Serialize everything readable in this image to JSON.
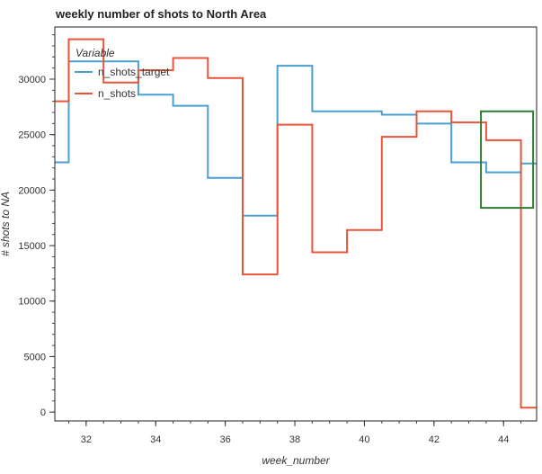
{
  "chart_data": {
    "type": "line",
    "step": true,
    "title": "weekly number of shots to North Area",
    "xlabel": "week_number",
    "ylabel": "# shots to NA",
    "xlim": [
      31.1,
      44.95
    ],
    "ylim": [
      -800,
      34700
    ],
    "xticks": [
      32,
      34,
      36,
      38,
      40,
      42,
      44
    ],
    "yticks": [
      0,
      5000,
      10000,
      15000,
      20000,
      25000,
      30000
    ],
    "legend": {
      "title": "Variable",
      "position": "top-left"
    },
    "series": [
      {
        "name": "n_shots_target",
        "color": "#4a9fd4",
        "x": [
          31,
          32,
          33,
          34,
          35,
          36,
          37,
          38,
          39,
          40,
          41,
          42,
          43,
          44,
          45
        ],
        "y": [
          22500,
          31600,
          31600,
          28600,
          27600,
          21100,
          17700,
          31200,
          27100,
          27100,
          26800,
          26000,
          22500,
          21600,
          22400
        ]
      },
      {
        "name": "n_shots",
        "color": "#e8553a",
        "x": [
          31,
          32,
          33,
          34,
          35,
          36,
          37,
          38,
          39,
          40,
          41,
          42,
          43,
          44,
          45
        ],
        "y": [
          28000,
          33600,
          29700,
          30800,
          31900,
          30100,
          12400,
          25900,
          14400,
          16400,
          24800,
          27100,
          26100,
          24500,
          400
        ]
      }
    ],
    "annotation_box": {
      "x": [
        43.35,
        44.85
      ],
      "y": [
        18400,
        27100
      ],
      "color": "#2e7d32"
    }
  }
}
